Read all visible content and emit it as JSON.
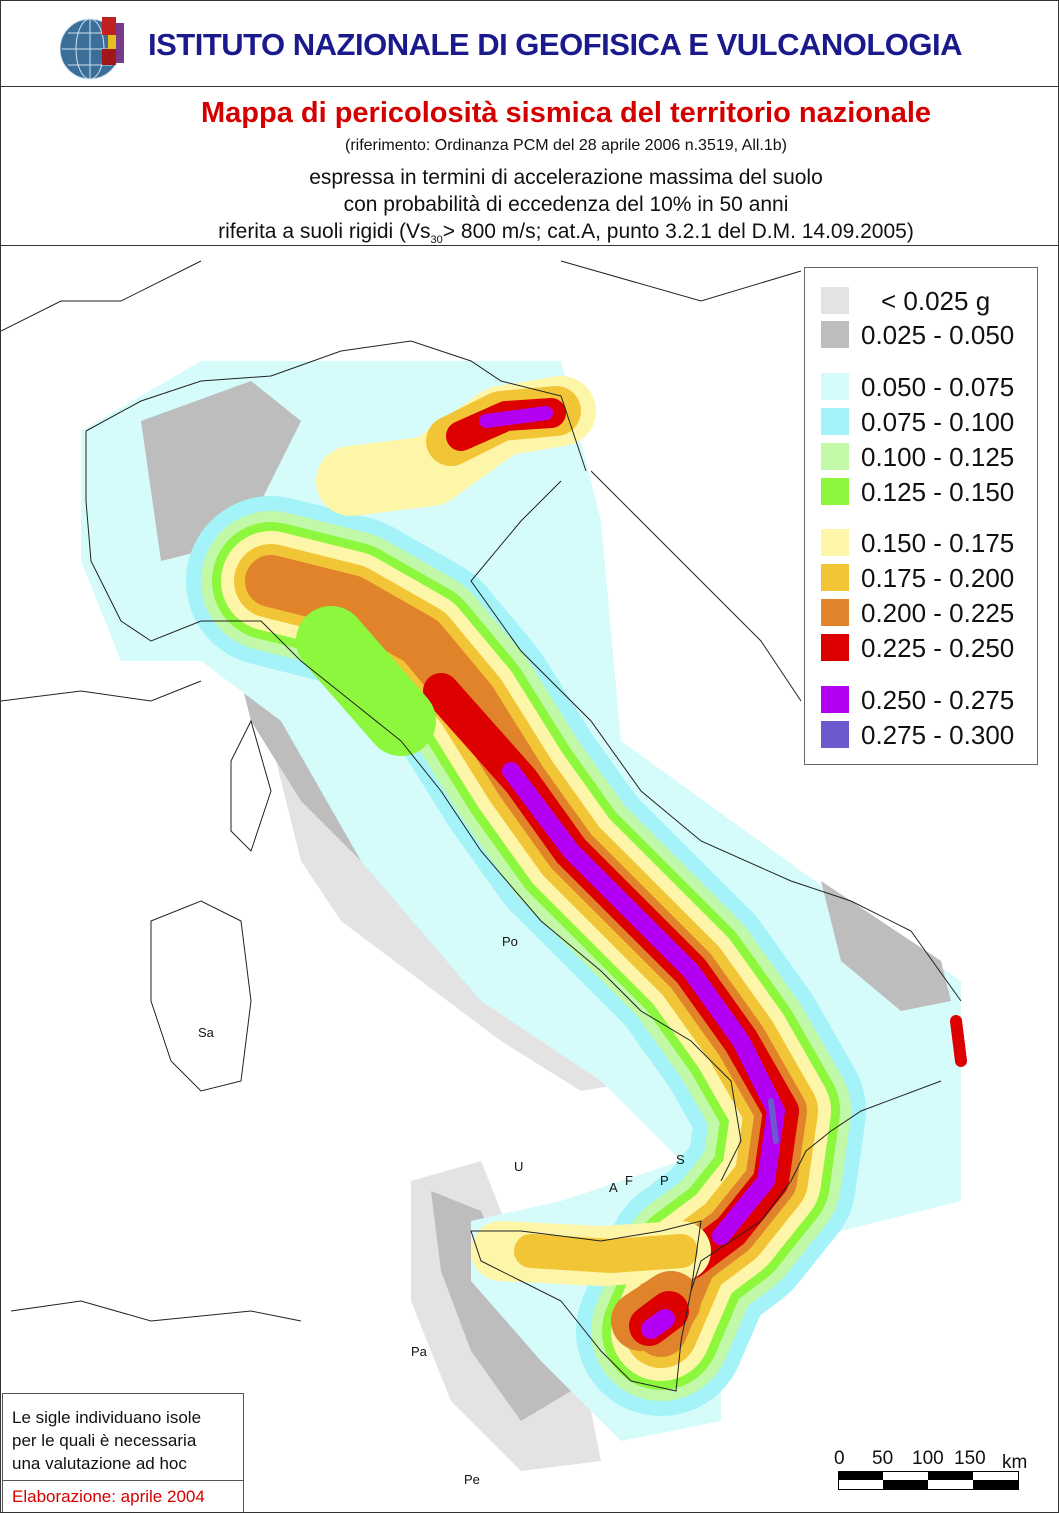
{
  "header": {
    "institute": "ISTITUTO NAZIONALE DI GEOFISICA E VULCANOLOGIA",
    "logo": "INGV globe logo"
  },
  "title": {
    "main": "Mappa di pericolosità sismica del territorio nazionale",
    "reference": "(riferimento: Ordinanza PCM del 28 aprile 2006 n.3519, All.1b)",
    "line1": "espressa in termini di accelerazione massima del suolo",
    "line2": "con probabilità di eccedenza del 10% in 50 anni",
    "line3_pre": "riferita a suoli rigidi (Vs",
    "line3_sub": "30",
    "line3_post": "> 800 m/s; cat.A, punto 3.2.1 del D.M. 14.09.2005)"
  },
  "legend": {
    "items": [
      {
        "label": "< 0.025 g",
        "color": "#e3e3e3"
      },
      {
        "label": "0.025 - 0.050",
        "color": "#bdbdbd"
      },
      {
        "label": "0.050 - 0.075",
        "color": "#d6fbfb"
      },
      {
        "label": "0.075 - 0.100",
        "color": "#a3f3f8"
      },
      {
        "label": "0.100 - 0.125",
        "color": "#c2f9a8"
      },
      {
        "label": "0.125 - 0.150",
        "color": "#8cf73c"
      },
      {
        "label": "0.150 - 0.175",
        "color": "#fdf5a8"
      },
      {
        "label": "0.175 - 0.200",
        "color": "#f2c537"
      },
      {
        "label": "0.200 - 0.225",
        "color": "#e0832a"
      },
      {
        "label": "0.225 - 0.250",
        "color": "#dc0000"
      },
      {
        "label": "0.250 - 0.275",
        "color": "#b300f5"
      },
      {
        "label": "0.275 - 0.300",
        "color": "#6a5acd"
      }
    ]
  },
  "islands": [
    "Po",
    "Sa",
    "U",
    "A",
    "F",
    "P",
    "S",
    "Pa",
    "Pe"
  ],
  "note": {
    "text": [
      "Le sigle individuano isole",
      "per le quali è necessaria",
      "una valutazione ad hoc"
    ],
    "elaboration": "Elaborazione: aprile 2004"
  },
  "scale": {
    "labels": [
      "0",
      "50",
      "100",
      "150"
    ],
    "unit": "km"
  }
}
